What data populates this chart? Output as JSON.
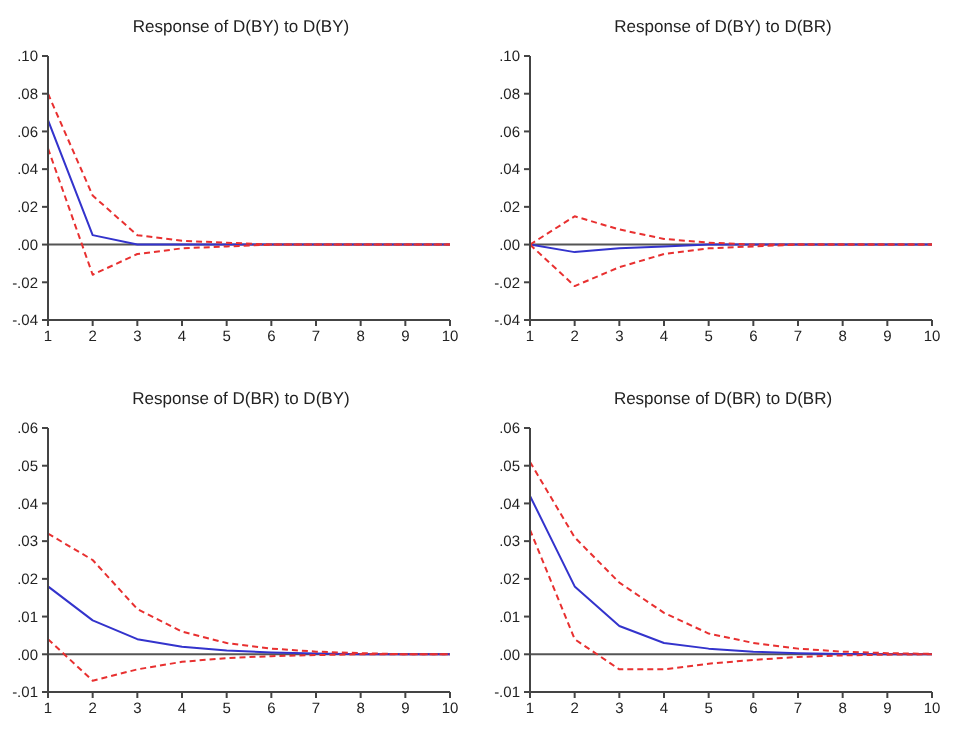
{
  "chart_data": [
    {
      "type": "line",
      "title": "Response of D(BY) to D(BY)",
      "x": [
        1,
        2,
        3,
        4,
        5,
        6,
        7,
        8,
        9,
        10
      ],
      "xlim": [
        1,
        10
      ],
      "xticks": [
        1,
        2,
        3,
        4,
        5,
        6,
        7,
        8,
        9,
        10
      ],
      "ylim": [
        -0.04,
        0.1
      ],
      "yticks": [
        {
          "value": -0.04,
          "label": "-.04"
        },
        {
          "value": -0.02,
          "label": "-.02"
        },
        {
          "value": 0,
          "label": ".00"
        },
        {
          "value": 0.02,
          "label": ".02"
        },
        {
          "value": 0.04,
          "label": ".04"
        },
        {
          "value": 0.06,
          "label": ".06"
        },
        {
          "value": 0.08,
          "label": ".08"
        },
        {
          "value": 0.1,
          "label": ".10"
        }
      ],
      "grid": false,
      "legend": false,
      "ref_lines": [
        {
          "axis": "y",
          "value": 0,
          "color": "#555555",
          "line_style": "solid"
        }
      ],
      "series": [
        {
          "color": "#3333cc",
          "line_style": "solid",
          "values": [
            0.066,
            0.005,
            0,
            0,
            0,
            0,
            0,
            0,
            0,
            0
          ]
        },
        {
          "color": "#e83030",
          "line_style": "dashed",
          "values": [
            0.08,
            0.026,
            0.005,
            0.002,
            0.001,
            0,
            0,
            0,
            0,
            0
          ]
        },
        {
          "color": "#e83030",
          "line_style": "dashed",
          "values": [
            0.051,
            -0.016,
            -0.005,
            -0.002,
            -0.001,
            0,
            0,
            0,
            0,
            0
          ]
        }
      ]
    },
    {
      "type": "line",
      "title": "Response of D(BY) to D(BR)",
      "x": [
        1,
        2,
        3,
        4,
        5,
        6,
        7,
        8,
        9,
        10
      ],
      "xlim": [
        1,
        10
      ],
      "xticks": [
        1,
        2,
        3,
        4,
        5,
        6,
        7,
        8,
        9,
        10
      ],
      "ylim": [
        -0.04,
        0.1
      ],
      "yticks": [
        {
          "value": -0.04,
          "label": "-.04"
        },
        {
          "value": -0.02,
          "label": "-.02"
        },
        {
          "value": 0,
          "label": ".00"
        },
        {
          "value": 0.02,
          "label": ".02"
        },
        {
          "value": 0.04,
          "label": ".04"
        },
        {
          "value": 0.06,
          "label": ".06"
        },
        {
          "value": 0.08,
          "label": ".08"
        },
        {
          "value": 0.1,
          "label": ".10"
        }
      ],
      "grid": false,
      "legend": false,
      "ref_lines": [
        {
          "axis": "y",
          "value": 0,
          "color": "#555555",
          "line_style": "solid"
        }
      ],
      "series": [
        {
          "color": "#3333cc",
          "line_style": "solid",
          "values": [
            0,
            -0.004,
            -0.002,
            -0.001,
            0,
            0,
            0,
            0,
            0,
            0
          ]
        },
        {
          "color": "#e83030",
          "line_style": "dashed",
          "values": [
            0,
            0.015,
            0.008,
            0.003,
            0.001,
            0,
            0,
            0,
            0,
            0
          ]
        },
        {
          "color": "#e83030",
          "line_style": "dashed",
          "values": [
            0,
            -0.022,
            -0.012,
            -0.005,
            -0.002,
            -0.001,
            0,
            0,
            0,
            0
          ]
        }
      ]
    },
    {
      "type": "line",
      "title": "Response of D(BR) to D(BY)",
      "x": [
        1,
        2,
        3,
        4,
        5,
        6,
        7,
        8,
        9,
        10
      ],
      "xlim": [
        1,
        10
      ],
      "xticks": [
        1,
        2,
        3,
        4,
        5,
        6,
        7,
        8,
        9,
        10
      ],
      "ylim": [
        -0.01,
        0.06
      ],
      "yticks": [
        {
          "value": -0.01,
          "label": "-.01"
        },
        {
          "value": 0,
          "label": ".00"
        },
        {
          "value": 0.01,
          "label": ".01"
        },
        {
          "value": 0.02,
          "label": ".02"
        },
        {
          "value": 0.03,
          "label": ".03"
        },
        {
          "value": 0.04,
          "label": ".04"
        },
        {
          "value": 0.05,
          "label": ".05"
        },
        {
          "value": 0.06,
          "label": ".06"
        }
      ],
      "grid": false,
      "legend": false,
      "ref_lines": [
        {
          "axis": "y",
          "value": 0,
          "color": "#555555",
          "line_style": "solid"
        }
      ],
      "series": [
        {
          "color": "#3333cc",
          "line_style": "solid",
          "values": [
            0.018,
            0.009,
            0.004,
            0.002,
            0.001,
            0.0005,
            0.0002,
            0,
            0,
            0
          ]
        },
        {
          "color": "#e83030",
          "line_style": "dashed",
          "values": [
            0.032,
            0.025,
            0.012,
            0.006,
            0.003,
            0.0015,
            0.0007,
            0.0003,
            0,
            0
          ]
        },
        {
          "color": "#e83030",
          "line_style": "dashed",
          "values": [
            0.004,
            -0.007,
            -0.004,
            -0.002,
            -0.001,
            -0.0005,
            -0.0002,
            0,
            0,
            0
          ]
        }
      ]
    },
    {
      "type": "line",
      "title": "Response of D(BR) to D(BR)",
      "x": [
        1,
        2,
        3,
        4,
        5,
        6,
        7,
        8,
        9,
        10
      ],
      "xlim": [
        1,
        10
      ],
      "xticks": [
        1,
        2,
        3,
        4,
        5,
        6,
        7,
        8,
        9,
        10
      ],
      "ylim": [
        -0.01,
        0.06
      ],
      "yticks": [
        {
          "value": -0.01,
          "label": "-.01"
        },
        {
          "value": 0,
          "label": ".00"
        },
        {
          "value": 0.01,
          "label": ".01"
        },
        {
          "value": 0.02,
          "label": ".02"
        },
        {
          "value": 0.03,
          "label": ".03"
        },
        {
          "value": 0.04,
          "label": ".04"
        },
        {
          "value": 0.05,
          "label": ".05"
        },
        {
          "value": 0.06,
          "label": ".06"
        }
      ],
      "grid": false,
      "legend": false,
      "ref_lines": [
        {
          "axis": "y",
          "value": 0,
          "color": "#555555",
          "line_style": "solid"
        }
      ],
      "series": [
        {
          "color": "#3333cc",
          "line_style": "solid",
          "values": [
            0.042,
            0.018,
            0.0075,
            0.003,
            0.0015,
            0.0007,
            0.0003,
            0.0001,
            0,
            0
          ]
        },
        {
          "color": "#e83030",
          "line_style": "dashed",
          "values": [
            0.051,
            0.031,
            0.019,
            0.011,
            0.0055,
            0.003,
            0.0015,
            0.0007,
            0.0003,
            0.0001
          ]
        },
        {
          "color": "#e83030",
          "line_style": "dashed",
          "values": [
            0.033,
            0.004,
            -0.004,
            -0.004,
            -0.0025,
            -0.0015,
            -0.0007,
            -0.0003,
            -0.0001,
            0
          ]
        }
      ]
    }
  ]
}
